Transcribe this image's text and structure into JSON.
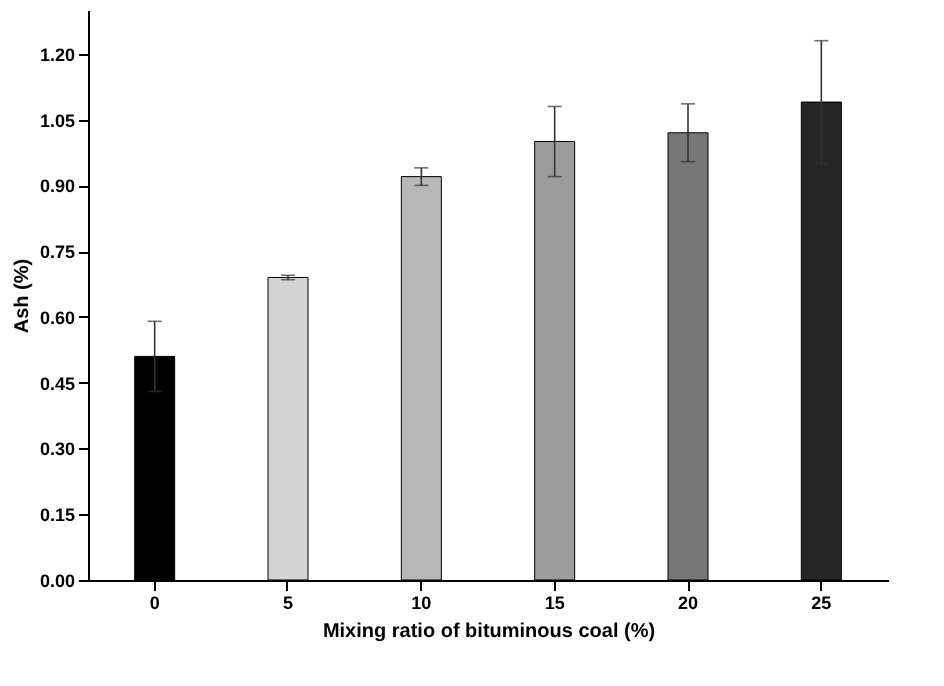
{
  "chart_data": {
    "type": "bar",
    "xlabel": "Mixing ratio of bituminous coal (%)",
    "ylabel": "Ash (%)",
    "categories": [
      "0",
      "5",
      "10",
      "15",
      "20",
      "25"
    ],
    "values": [
      0.51,
      0.69,
      0.92,
      1.0,
      1.02,
      1.09
    ],
    "errors": [
      0.08,
      0.005,
      0.02,
      0.08,
      0.066,
      0.14
    ],
    "colors": [
      "#000000",
      "#d4d4d4",
      "#b8b8b8",
      "#9c9c9c",
      "#777777",
      "#262626"
    ],
    "ylim": [
      0,
      1.3
    ],
    "yticks": [
      {
        "value": 0,
        "label": "0.00"
      },
      {
        "value": 0.15,
        "label": "0.15"
      },
      {
        "value": 0.3,
        "label": "0.30"
      },
      {
        "value": 0.45,
        "label": "0.45"
      },
      {
        "value": 0.6,
        "label": "0.60"
      },
      {
        "value": 0.75,
        "label": "0.75"
      },
      {
        "value": 0.9,
        "label": "0.90"
      },
      {
        "value": 1.05,
        "label": "1.05"
      },
      {
        "value": 1.2,
        "label": "1.20"
      }
    ],
    "grid": false
  }
}
